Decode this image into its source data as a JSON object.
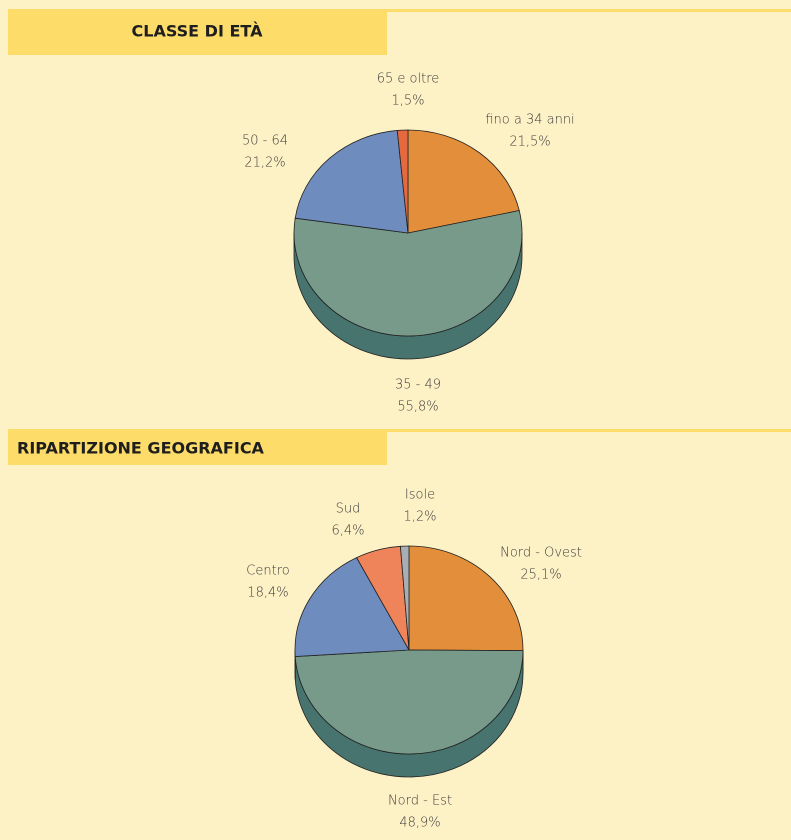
{
  "chart_data": [
    {
      "type": "pie",
      "title": "CLASSE DI ETÀ",
      "categories": [
        "fino a 34 anni",
        "35 - 49",
        "50 - 64",
        "65 e oltre"
      ],
      "values": [
        21.5,
        55.8,
        21.2,
        1.5
      ],
      "value_labels": [
        "21,5%",
        "55,8%",
        "21,2%",
        "1,5%"
      ],
      "colors": [
        "#e38e3a",
        "#779a8a",
        "#6f8cbe",
        "#e5683f"
      ]
    },
    {
      "type": "pie",
      "title": "RIPARTIZIONE GEOGRAFICA",
      "categories": [
        "Nord - Ovest",
        "Nord - Est",
        "Centro",
        "Sud",
        "Isole"
      ],
      "values": [
        25.1,
        48.9,
        18.4,
        6.4,
        1.2
      ],
      "value_labels": [
        "25,1%",
        "48,9%",
        "18,4%",
        "6,4%",
        "1,2%"
      ],
      "colors": [
        "#e38e3a",
        "#779a8a",
        "#6f8cbe",
        "#ef845a",
        "#a8aeb4"
      ]
    }
  ]
}
